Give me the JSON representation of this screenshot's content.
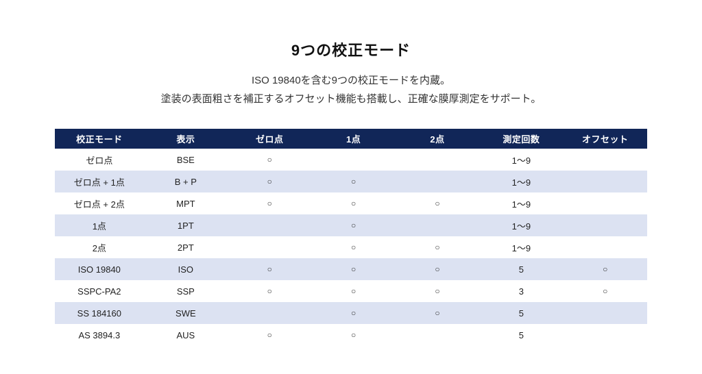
{
  "page": {
    "title": "9つの校正モード",
    "subtitle_line1": "ISO 19840を含む9つの校正モードを内蔵。",
    "subtitle_line2": "塗装の表面粗さを補正するオフセット機能も搭載し、正確な膜厚測定をサポート。"
  },
  "colors": {
    "header_bg": "#112658",
    "header_text": "#FFFFFF",
    "alt_row_bg": "#DCE2F2",
    "body_text": "#222222"
  },
  "table": {
    "circle_mark": "○",
    "columns": [
      "校正モード",
      "表示",
      "ゼロ点",
      "1点",
      "2点",
      "測定回数",
      "オフセット"
    ],
    "rows": [
      [
        "ゼロ点",
        "BSE",
        "○",
        "",
        "",
        "1〜9",
        ""
      ],
      [
        "ゼロ点 + 1点",
        "B + P",
        "○",
        "○",
        "",
        "1〜9",
        ""
      ],
      [
        "ゼロ点 + 2点",
        "MPT",
        "○",
        "○",
        "○",
        "1〜9",
        ""
      ],
      [
        "1点",
        "1PT",
        "",
        "○",
        "",
        "1〜9",
        ""
      ],
      [
        "2点",
        "2PT",
        "",
        "○",
        "○",
        "1〜9",
        ""
      ],
      [
        "ISO 19840",
        "ISO",
        "○",
        "○",
        "○",
        "5",
        "○"
      ],
      [
        "SSPC-PA2",
        "SSP",
        "○",
        "○",
        "○",
        "3",
        "○"
      ],
      [
        "SS 184160",
        "SWE",
        "",
        "○",
        "○",
        "5",
        ""
      ],
      [
        "AS 3894.3",
        "AUS",
        "○",
        "○",
        "",
        "5",
        ""
      ]
    ]
  }
}
